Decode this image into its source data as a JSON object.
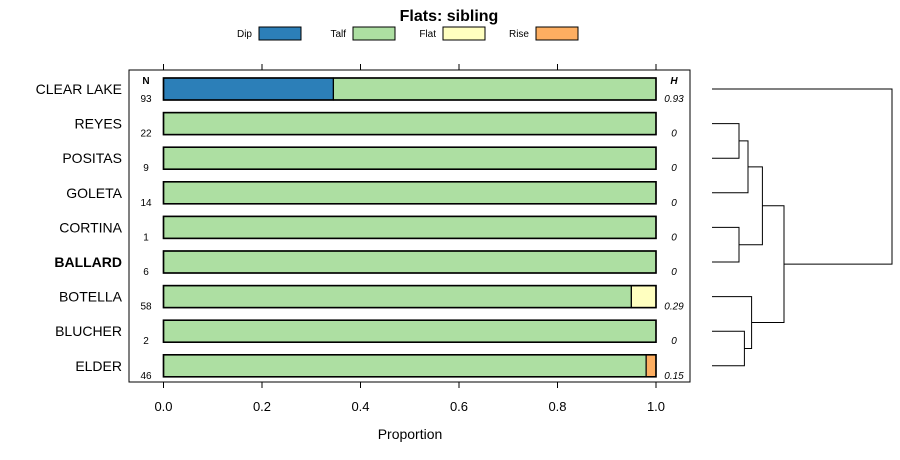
{
  "chart_data": {
    "type": "bar",
    "orientation": "horizontal-stacked",
    "title": "Flats: sibling",
    "xlabel": "Proportion",
    "ylabel": "",
    "xlim": [
      0,
      1
    ],
    "x_ticks": [
      "0.0",
      "0.2",
      "0.4",
      "0.6",
      "0.8",
      "1.0"
    ],
    "x_tick_values": [
      0,
      0.2,
      0.4,
      0.6,
      0.8,
      1.0
    ],
    "legend": {
      "position": "top",
      "entries": [
        {
          "name": "Dip",
          "color": "#2c7fb8"
        },
        {
          "name": "Talf",
          "color": "#addfa2"
        },
        {
          "name": "Flat",
          "color": "#ffffc0"
        },
        {
          "name": "Rise",
          "color": "#fdae61"
        }
      ]
    },
    "n_header": "N",
    "h_header": "H",
    "categories": [
      "CLEAR LAKE",
      "REYES",
      "POSITAS",
      "GOLETA",
      "CORTINA",
      "BALLARD",
      "BOTELLA",
      "BLUCHER",
      "ELDER"
    ],
    "highlight": "BALLARD",
    "n_values": [
      "93",
      "22",
      "9",
      "14",
      "1",
      "6",
      "58",
      "2",
      "46"
    ],
    "h_values": [
      "0.93",
      "0",
      "0",
      "0",
      "0",
      "0",
      "0.29",
      "0",
      "0.15"
    ],
    "series": [
      {
        "name": "Dip",
        "values": [
          0.345,
          0,
          0,
          0,
          0,
          0,
          0,
          0,
          0
        ]
      },
      {
        "name": "Talf",
        "values": [
          0.655,
          1,
          1,
          1,
          1,
          1,
          0.95,
          1,
          0.98
        ]
      },
      {
        "name": "Flat",
        "values": [
          0,
          0,
          0,
          0,
          0,
          0,
          0.05,
          0,
          0
        ]
      },
      {
        "name": "Rise",
        "values": [
          0,
          0,
          0,
          0,
          0,
          0,
          0,
          0,
          0.02
        ]
      }
    ],
    "dendrogram": {
      "merges": [
        {
          "a": "REYES",
          "b": "POSITAS",
          "height": 0.15
        },
        {
          "a": "m0",
          "b": "GOLETA",
          "height": 0.2
        },
        {
          "a": "CORTINA",
          "b": "BALLARD",
          "height": 0.15
        },
        {
          "a": "m1",
          "b": "m2",
          "height": 0.28
        },
        {
          "a": "BLUCHER",
          "b": "ELDER",
          "height": 0.18
        },
        {
          "a": "BOTELLA",
          "b": "m4",
          "height": 0.22
        },
        {
          "a": "m3",
          "b": "m5",
          "height": 0.4
        },
        {
          "a": "CLEAR LAKE",
          "b": "m6",
          "height": 1.0
        }
      ]
    }
  }
}
